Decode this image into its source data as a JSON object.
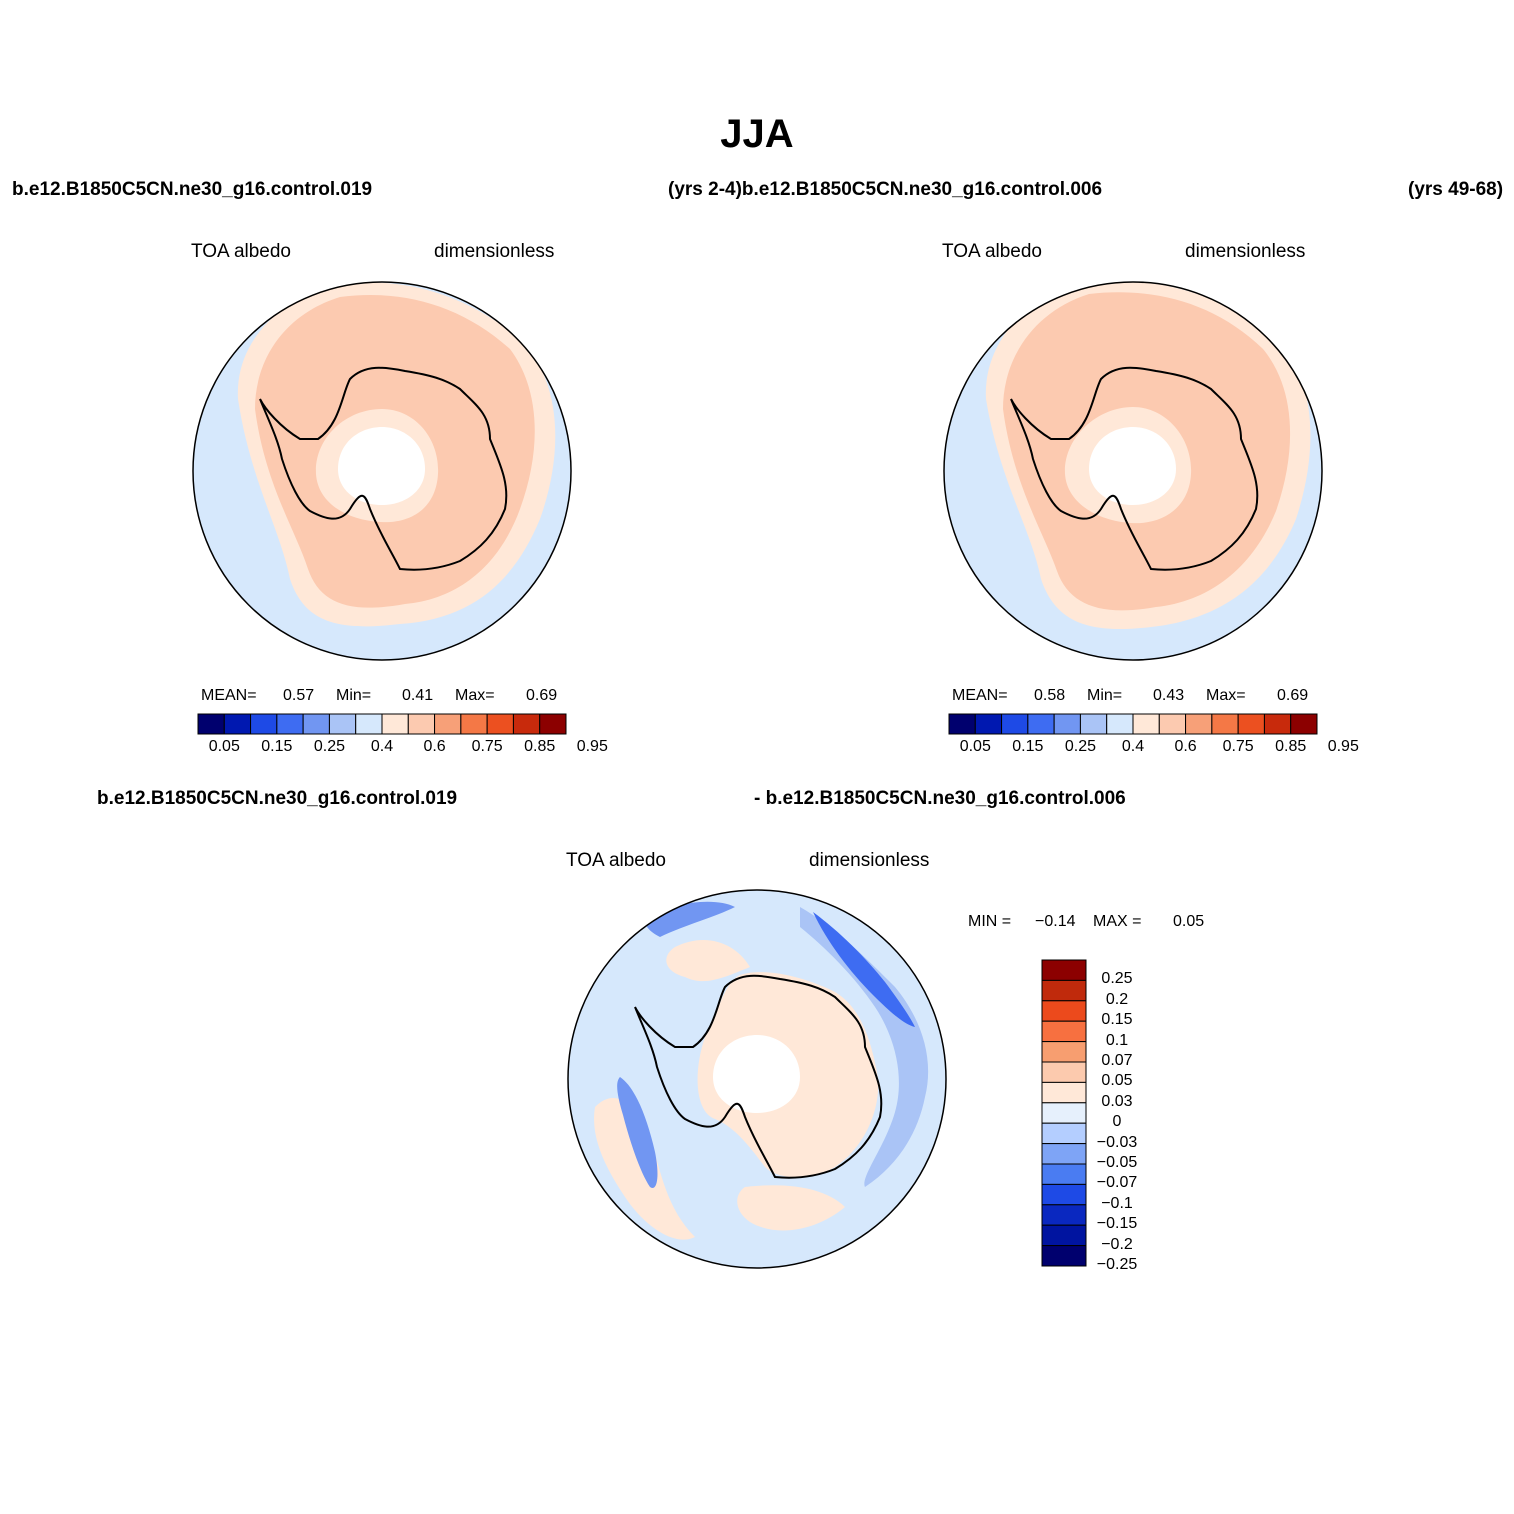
{
  "figure": {
    "title": "JJA",
    "header_left": "b.e12.B1850C5CN.ne30_g16.control.019",
    "header_mid": "(yrs 2-4)b.e12.B1850C5CN.ne30_g16.control.006",
    "header_right": "(yrs 49-68)",
    "diff_header_left": "b.e12.B1850C5CN.ne30_g16.control.019",
    "diff_header_right": "- b.e12.B1850C5CN.ne30_g16.control.006"
  },
  "panels": [
    {
      "variable": "TOA albedo",
      "units": "dimensionless",
      "stats": {
        "mean_label": "MEAN=",
        "mean": "0.57",
        "min_label": "Min=",
        "min": "0.41",
        "max_label": "Max=",
        "max": "0.69"
      }
    },
    {
      "variable": "TOA albedo",
      "units": "dimensionless",
      "stats": {
        "mean_label": "MEAN=",
        "mean": "0.58",
        "min_label": "Min=",
        "min": "0.43",
        "max_label": "Max=",
        "max": "0.69"
      }
    },
    {
      "variable": "TOA albedo",
      "units": "dimensionless",
      "stats": {
        "min_label": "MIN =",
        "min": "−0.14",
        "max_label": "MAX =",
        "max": "0.05"
      }
    }
  ],
  "colorbar_abs": {
    "colors": [
      "#00006e",
      "#0018b0",
      "#1e4ae6",
      "#3e6cf2",
      "#7196f2",
      "#aac4f6",
      "#d6e8fc",
      "#ffe8d8",
      "#fccab0",
      "#f7a078",
      "#f47846",
      "#ec5020",
      "#c82a0c",
      "#8c0000"
    ],
    "tick_labels": [
      "0.05",
      "0.15",
      "0.25",
      "0.4",
      "0.6",
      "0.75",
      "0.85",
      "0.95"
    ]
  },
  "colorbar_diff": {
    "colors": [
      "#8c0000",
      "#c02a0c",
      "#ec4a1c",
      "#f77040",
      "#f79e70",
      "#fccaae",
      "#ffe8d8",
      "#e6f0fc",
      "#b4ceff",
      "#7ea4f6",
      "#4a7cf2",
      "#1e4ae6",
      "#0a28c0",
      "#0014a0",
      "#00006e"
    ],
    "tick_labels": [
      "0.25",
      "0.2",
      "0.15",
      "0.1",
      "0.07",
      "0.05",
      "0.03",
      "0",
      "−0.03",
      "−0.05",
      "−0.07",
      "−0.1",
      "−0.15",
      "−0.2",
      "−0.25"
    ]
  },
  "map_colors": {
    "ocean": "#d6e8fc",
    "outer_band": "#ffe8d8",
    "sea_ice": "#fccab0",
    "pole_hole": "#ffffff",
    "diff_neutral": "#d6e8fc",
    "diff_pos": "#ffe8d8",
    "diff_neg1": "#aac4f6",
    "diff_neg2": "#7196f2",
    "diff_neg3": "#3e6cf2"
  }
}
